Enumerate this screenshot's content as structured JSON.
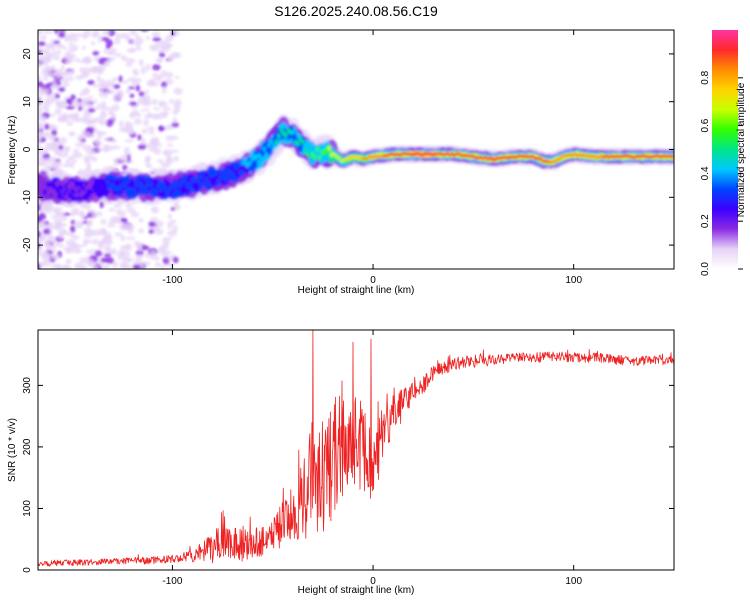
{
  "title": "S126.2025.240.08.56.C19",
  "colors": {
    "signal_line": "#ee2222",
    "frame": "#000000",
    "colormap": [
      "#ffffff",
      "#e6d3f7",
      "#8a2be2",
      "#3c00ff",
      "#0044ff",
      "#00c8ff",
      "#00e68a",
      "#33ff00",
      "#c8ff00",
      "#ffd400",
      "#ff8c00",
      "#ff2a2a",
      "#ff33a6"
    ]
  },
  "chart_data": [
    {
      "type": "heatmap",
      "title": "S126.2025.240.08.56.C19",
      "xlabel": "Height of straight line (km)",
      "ylabel": "Frequency (Hz)",
      "xlim": [
        -167,
        150
      ],
      "ylim": [
        -25,
        25
      ],
      "xticks": [
        -100,
        0,
        100
      ],
      "yticks": [
        -20,
        -10,
        0,
        10,
        20
      ],
      "colorbar": {
        "label": "Normalized spectral amplitude",
        "range": [
          0,
          1
        ],
        "ticks": [
          0.0,
          0.2,
          0.4,
          0.6,
          0.8
        ]
      },
      "ridge": {
        "x": [
          -167,
          -150,
          -130,
          -110,
          -100,
          -90,
          -80,
          -70,
          -60,
          -50,
          -45,
          -40,
          -35,
          -30,
          -25,
          -20,
          -15,
          -10,
          -5,
          0,
          10,
          20,
          30,
          40,
          50,
          60,
          70,
          80,
          85,
          90,
          95,
          100,
          110,
          120,
          130,
          140,
          150
        ],
        "freq": [
          -8,
          -8.5,
          -7.5,
          -8,
          -8,
          -7,
          -6,
          -5,
          -3,
          1,
          4,
          3,
          1,
          -1,
          -0.5,
          -1,
          -2.5,
          -1.5,
          -2,
          -1.5,
          -1,
          -1,
          -1,
          -1,
          -1.5,
          -2,
          -1.5,
          -1.5,
          -2.5,
          -2.5,
          -1.5,
          -1,
          -1.5,
          -1.5,
          -1.5,
          -1.5,
          -1.5
        ],
        "amplitude": [
          0.2,
          0.25,
          0.3,
          0.3,
          0.3,
          0.3,
          0.35,
          0.35,
          0.4,
          0.45,
          0.5,
          0.45,
          0.5,
          0.55,
          0.6,
          0.65,
          0.7,
          0.75,
          0.8,
          0.85,
          0.9,
          0.95,
          0.95,
          0.9,
          0.9,
          0.95,
          0.9,
          0.9,
          0.9,
          0.85,
          0.85,
          0.85,
          0.85,
          0.9,
          0.9,
          0.9,
          0.9
        ]
      }
    },
    {
      "type": "line",
      "title": "",
      "xlabel": "Height of straight line (km)",
      "ylabel": "SNR (10 * v/v)",
      "xlim": [
        -167,
        150
      ],
      "ylim": [
        0,
        390
      ],
      "xticks": [
        -100,
        0,
        100
      ],
      "yticks": [
        0,
        100,
        200,
        300
      ],
      "series": [
        {
          "name": "SNR",
          "x": [
            -167,
            -150,
            -130,
            -110,
            -100,
            -90,
            -80,
            -75,
            -70,
            -60,
            -50,
            -40,
            -35,
            -30,
            -25,
            -20,
            -15,
            -10,
            -5,
            0,
            5,
            10,
            15,
            20,
            25,
            30,
            40,
            50,
            60,
            70,
            80,
            90,
            100,
            110,
            120,
            130,
            140,
            150
          ],
          "y": [
            10,
            12,
            14,
            16,
            18,
            22,
            35,
            55,
            45,
            40,
            60,
            90,
            120,
            160,
            170,
            180,
            200,
            210,
            200,
            170,
            220,
            250,
            270,
            290,
            300,
            320,
            335,
            340,
            340,
            345,
            345,
            348,
            345,
            345,
            342,
            340,
            340,
            340
          ],
          "noise_envelope": [
            4,
            5,
            5,
            6,
            6,
            10,
            25,
            35,
            30,
            25,
            30,
            45,
            70,
            110,
            110,
            100,
            90,
            80,
            70,
            60,
            45,
            35,
            25,
            18,
            15,
            12,
            10,
            10,
            8,
            8,
            8,
            8,
            8,
            8,
            8,
            8,
            8,
            8
          ]
        }
      ],
      "annotations": [
        {
          "x": -30,
          "y": 390,
          "text": ""
        },
        {
          "x": -10,
          "y": 370,
          "text": ""
        },
        {
          "x": -1,
          "y": 375,
          "text": ""
        }
      ]
    }
  ]
}
